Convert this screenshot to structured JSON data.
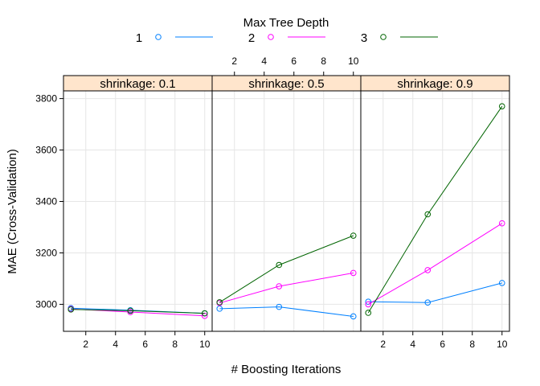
{
  "chart_data": {
    "type": "line",
    "legend": {
      "title": "Max Tree Depth",
      "position": "top",
      "entries": [
        {
          "label": "1",
          "color": "#0080ff"
        },
        {
          "label": "2",
          "color": "#ff00ff"
        },
        {
          "label": "3",
          "color": "#006400"
        }
      ]
    },
    "xlabel": "# Boosting Iterations",
    "ylabel": "MAE (Cross-Validation)",
    "x": [
      1,
      5,
      10
    ],
    "xlim": [
      0.5,
      10.5
    ],
    "xticks": [
      2,
      4,
      6,
      8,
      10
    ],
    "ylim": [
      2895,
      3830
    ],
    "yticks": [
      3000,
      3200,
      3400,
      3600,
      3800
    ],
    "grid": true,
    "panels": [
      {
        "strip": "shrinkage: 0.1",
        "series": [
          {
            "name": "1",
            "values": [
              2985,
              2977,
              2965
            ]
          },
          {
            "name": "2",
            "values": [
              2982,
              2970,
              2955
            ]
          },
          {
            "name": "3",
            "values": [
              2980,
              2975,
              2965
            ]
          }
        ]
      },
      {
        "strip": "shrinkage: 0.5",
        "series": [
          {
            "name": "1",
            "values": [
              2983,
              2990,
              2953
            ]
          },
          {
            "name": "2",
            "values": [
              3005,
              3070,
              3122
            ]
          },
          {
            "name": "3",
            "values": [
              3008,
              3153,
              3267
            ]
          }
        ]
      },
      {
        "strip": "shrinkage: 0.9",
        "series": [
          {
            "name": "1",
            "values": [
              3010,
              3007,
              3083
            ]
          },
          {
            "name": "2",
            "values": [
              3000,
              3133,
              3315
            ]
          },
          {
            "name": "3",
            "values": [
              2967,
              3350,
              3770
            ]
          }
        ]
      }
    ]
  }
}
